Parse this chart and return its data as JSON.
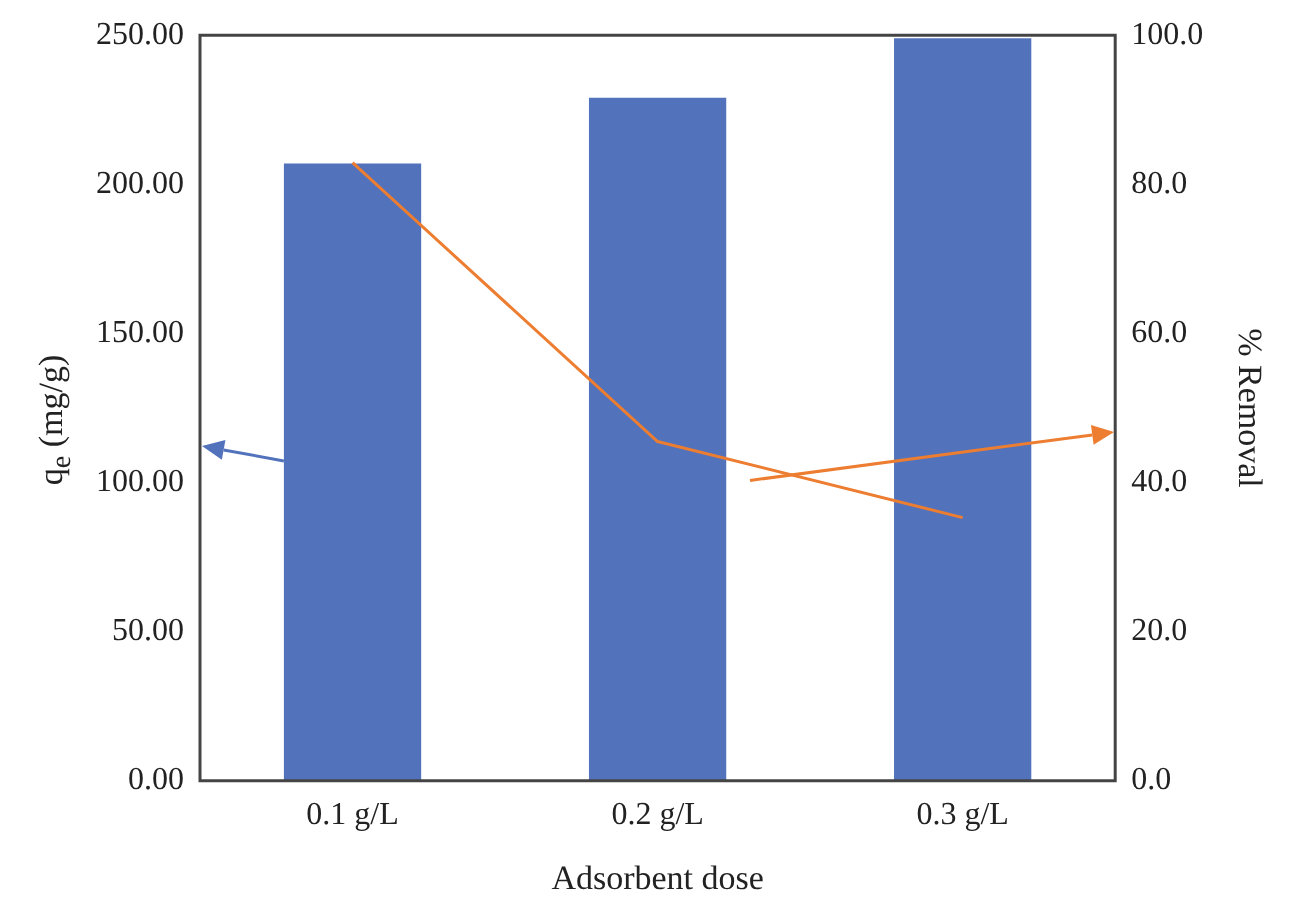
{
  "chart_data": {
    "type": "bar",
    "xlabel": "Adsorbent dose",
    "ylabel": "q$_{e}$ (mg/g)",
    "y2label": "% Removal",
    "categories": [
      "0.1 g/L",
      "0.2 g/L",
      "0.3 g/L"
    ],
    "series": [
      {
        "color": "#5273bb",
        "values": [
          207,
          229,
          249
        ]
      },
      {
        "type": "line",
        "axis": "y2",
        "color": "#ed7d31",
        "values": [
          82.9,
          45.5,
          35.3
        ]
      }
    ],
    "ylim": [
      0,
      250
    ],
    "yticks": [
      {
        "value": 0,
        "label": "0.00"
      },
      {
        "value": 50,
        "label": "50.00"
      },
      {
        "value": 100,
        "label": "100.00"
      },
      {
        "value": 150,
        "label": "150.00"
      },
      {
        "value": 200,
        "label": "200.00"
      },
      {
        "value": 250,
        "label": "250.00"
      }
    ],
    "y2lim": [
      0,
      100
    ],
    "y2ticks": [
      {
        "value": 0,
        "label": "0.0"
      },
      {
        "value": 20,
        "label": "20.0"
      },
      {
        "value": 40,
        "label": "40.0"
      },
      {
        "value": 60,
        "label": "60.0"
      },
      {
        "value": 80,
        "label": "80.0"
      },
      {
        "value": 100,
        "label": "100.0"
      }
    ],
    "grid": false,
    "legend": false,
    "marker": "none"
  }
}
